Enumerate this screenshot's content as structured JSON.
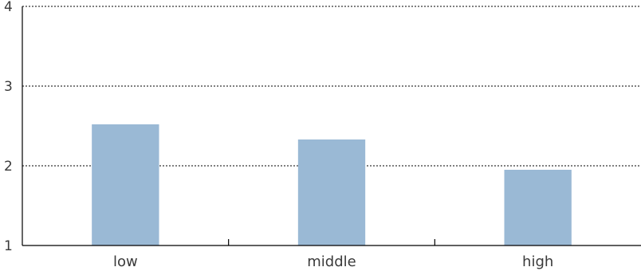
{
  "chart_data": {
    "type": "bar",
    "categories": [
      "low",
      "middle",
      "high"
    ],
    "values": [
      2.52,
      2.33,
      1.95
    ],
    "ylim": [
      1,
      4
    ],
    "yticks": [
      "1",
      "2",
      "3",
      "4"
    ],
    "grid": true,
    "bar_color": "#9ab9d5",
    "title": "",
    "xlabel": "",
    "ylabel": ""
  }
}
